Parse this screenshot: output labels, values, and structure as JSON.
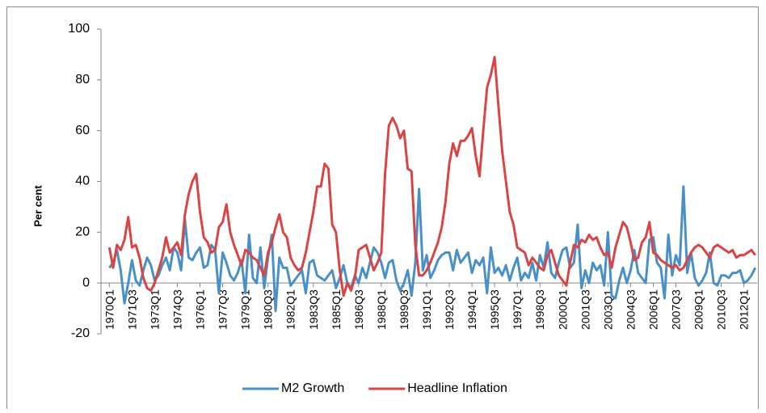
{
  "chart_data": {
    "type": "line",
    "y_label": "Per cent",
    "categories": [
      "1970Q1",
      null,
      null,
      null,
      null,
      null,
      "1971Q3",
      null,
      null,
      null,
      null,
      null,
      "1973Q1",
      null,
      null,
      null,
      null,
      null,
      "1974Q3",
      null,
      null,
      null,
      null,
      null,
      "1976Q1",
      null,
      null,
      null,
      null,
      null,
      "1977Q3",
      null,
      null,
      null,
      null,
      null,
      "1979Q1",
      null,
      null,
      null,
      null,
      null,
      "1980Q3",
      null,
      null,
      null,
      null,
      null,
      "1982Q1",
      null,
      null,
      null,
      null,
      null,
      "1983Q3",
      null,
      null,
      null,
      null,
      null,
      "1985Q1",
      null,
      null,
      null,
      null,
      null,
      "1986Q3",
      null,
      null,
      null,
      null,
      null,
      "1988Q1",
      null,
      null,
      null,
      null,
      null,
      "1989Q3",
      null,
      null,
      null,
      null,
      null,
      "1991Q1",
      null,
      null,
      null,
      null,
      null,
      "1992Q3",
      null,
      null,
      null,
      null,
      null,
      "1994Q1",
      null,
      null,
      null,
      null,
      null,
      "1995Q3",
      null,
      null,
      null,
      null,
      null,
      "1997Q1",
      null,
      null,
      null,
      null,
      null,
      "1998Q3",
      null,
      null,
      null,
      null,
      null,
      "2000Q1",
      null,
      null,
      null,
      null,
      null,
      "2001Q3",
      null,
      null,
      null,
      null,
      null,
      "2003Q1",
      null,
      null,
      null,
      null,
      null,
      "2004Q3",
      null,
      null,
      null,
      null,
      null,
      "2006Q1",
      null,
      null,
      null,
      null,
      null,
      "2007Q3",
      null,
      null,
      null,
      null,
      null,
      "2009Q1",
      null,
      null,
      null,
      null,
      null,
      "2010Q3",
      null,
      null,
      null,
      null,
      null,
      "2012Q1",
      null,
      null,
      null
    ],
    "series": [
      {
        "name": "M2 Growth",
        "color": "#4a90c8",
        "values": [
          6,
          8,
          13,
          5,
          -8,
          0,
          9,
          1,
          -1,
          5,
          10,
          7,
          1,
          3,
          7,
          10,
          5,
          14,
          12,
          5,
          25,
          10,
          9,
          12,
          14,
          6,
          7,
          15,
          13,
          -4,
          12,
          8,
          3,
          1,
          4,
          9,
          -4,
          19,
          2,
          0,
          14,
          -2,
          10,
          19,
          -11,
          10,
          6,
          6,
          -1,
          1,
          3,
          5,
          -4,
          8,
          9,
          3,
          2,
          1,
          3,
          5,
          -2,
          2,
          7,
          0,
          -2,
          3,
          0,
          6,
          2,
          8,
          14,
          12,
          8,
          2,
          8,
          9,
          1,
          -3,
          0,
          5,
          -5,
          8,
          37,
          5,
          11,
          2,
          5,
          9,
          11,
          12,
          12,
          5,
          13,
          8,
          10,
          12,
          4,
          9,
          7,
          10,
          -4,
          14,
          4,
          6,
          3,
          7,
          1,
          6,
          10,
          1,
          4,
          2,
          8,
          1,
          11,
          6,
          16,
          4,
          2,
          8,
          13,
          14,
          6,
          8,
          23,
          -2,
          5,
          0,
          8,
          5,
          7,
          -1,
          20,
          -5,
          -6,
          1,
          6,
          0,
          5,
          13,
          4,
          2,
          0,
          17,
          18,
          8,
          6,
          -6,
          19,
          3,
          11,
          7,
          38,
          4,
          12,
          2,
          -1,
          1,
          4,
          12,
          0,
          -1,
          3,
          3,
          2,
          4,
          4,
          5,
          0,
          1,
          3,
          6
        ]
      },
      {
        "name": "Headline Inflation",
        "color": "#d94545",
        "values": [
          14,
          6,
          15,
          13,
          17,
          26,
          14,
          15,
          10,
          2,
          -2,
          -3,
          0,
          5,
          10,
          18,
          12,
          14,
          16,
          11,
          27,
          35,
          40,
          43,
          28,
          18,
          16,
          12,
          13,
          22,
          24,
          31,
          20,
          15,
          11,
          7,
          13,
          12,
          10,
          9,
          6,
          3,
          12,
          16,
          22,
          27,
          20,
          18,
          10,
          7,
          5,
          6,
          12,
          20,
          28,
          38,
          38,
          47,
          45,
          23,
          20,
          5,
          -5,
          0,
          -3,
          2,
          13,
          14,
          15,
          10,
          5,
          8,
          12,
          43,
          62,
          65,
          62,
          57,
          60,
          45,
          44,
          15,
          3,
          3,
          5,
          8,
          12,
          16,
          22,
          32,
          47,
          55,
          50,
          56,
          56,
          58,
          61,
          50,
          42,
          60,
          77,
          82,
          89,
          70,
          52,
          40,
          28,
          23,
          14,
          13,
          12,
          7,
          10,
          8,
          6,
          5,
          11,
          13,
          8,
          3,
          1,
          -1,
          8,
          15,
          14,
          17,
          16,
          19,
          17,
          18,
          14,
          11,
          12,
          6,
          14,
          19,
          24,
          22,
          16,
          9,
          10,
          16,
          18,
          24,
          12,
          11,
          9,
          8,
          7,
          6,
          7,
          5,
          6,
          9,
          12,
          14,
          15,
          14,
          12,
          10,
          14,
          15,
          14,
          13,
          12,
          13,
          10,
          11,
          11,
          12,
          13,
          11
        ]
      }
    ],
    "ylim": [
      -20,
      100
    ],
    "yticks": [
      -20,
      0,
      20,
      40,
      60,
      80,
      100
    ],
    "grid": false,
    "legend": "bottom"
  }
}
